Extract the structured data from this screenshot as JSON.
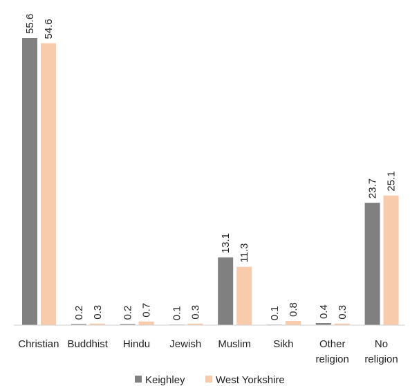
{
  "chart_data": {
    "type": "bar",
    "categories": [
      "Christian",
      "Buddhist",
      "Hindu",
      "Jewish",
      "Muslim",
      "Sikh",
      "Other religion",
      "No religion"
    ],
    "series": [
      {
        "name": "Keighley",
        "values": [
          55.6,
          0.2,
          0.2,
          0.1,
          13.1,
          0.1,
          0.4,
          23.7
        ],
        "color": "#808080"
      },
      {
        "name": "West Yorkshire",
        "values": [
          54.6,
          0.3,
          0.7,
          0.3,
          11.3,
          0.8,
          0.3,
          25.1
        ],
        "color": "#F8CBAD"
      }
    ],
    "ylim": [
      0,
      55.6
    ],
    "grid": false,
    "legend": "bottom-center",
    "data_labels": true
  }
}
